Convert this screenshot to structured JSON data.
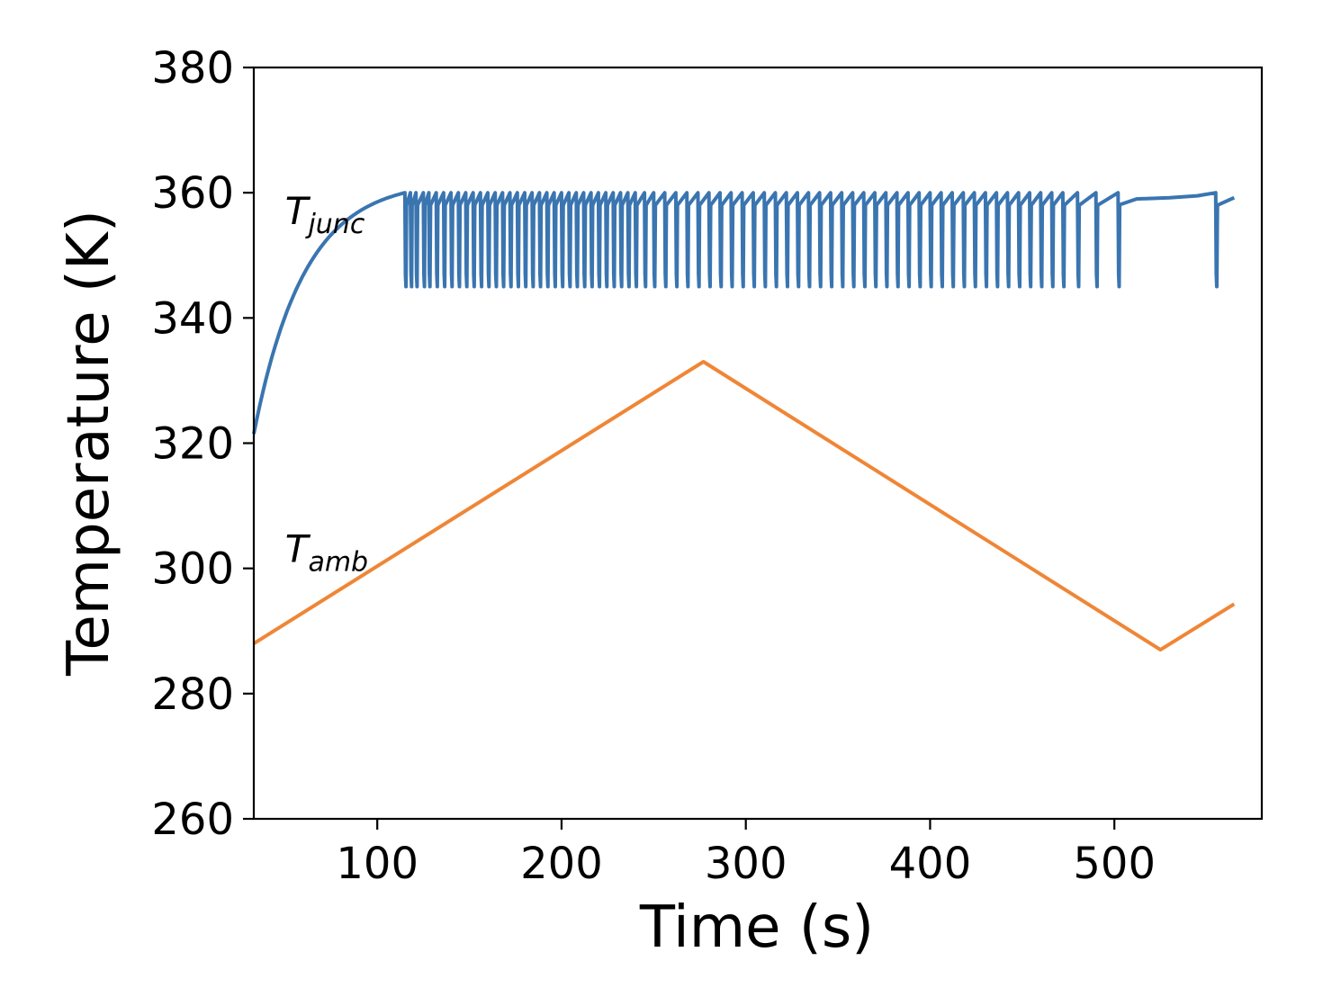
{
  "chart_data": {
    "type": "line",
    "xlabel": "Time (s)",
    "ylabel": "Temperature (K)",
    "xlim": [
      33,
      580
    ],
    "ylim": [
      260,
      380
    ],
    "xticks": [
      100,
      200,
      300,
      400,
      500
    ],
    "yticks": [
      260,
      280,
      300,
      320,
      340,
      360,
      380
    ],
    "grid": false,
    "series": [
      {
        "name": "T",
        "sub": "junc",
        "color": "#3a75b0",
        "label_at": [
          50,
          355
        ],
        "warmup": {
          "x_start": 33,
          "x_end": 115,
          "y_start": 321.5,
          "y_end": 360
        },
        "cycle_upper": 360,
        "cycle_lower": 345,
        "cycle_restart": 358,
        "cycle_max_times": [
          115,
          118,
          121,
          125,
          128,
          132,
          136,
          140,
          144,
          148,
          152,
          156,
          160,
          164,
          168,
          172,
          176,
          180,
          184,
          188,
          192,
          196,
          200,
          204,
          208,
          212,
          216,
          220,
          224,
          228,
          232,
          236,
          240,
          245,
          250,
          256,
          262,
          268,
          274,
          280,
          286,
          292,
          298,
          304,
          310,
          316,
          322,
          328,
          334,
          340,
          346,
          352,
          358,
          364,
          370,
          376,
          382,
          388,
          394,
          400,
          406,
          412,
          418,
          424,
          430,
          436,
          442,
          448,
          454,
          460,
          466,
          472,
          480,
          490,
          502
        ],
        "tail": {
          "x": [
            502,
            512,
            530,
            545,
            555,
            565
          ],
          "y": [
            358,
            359,
            359.2,
            359.5,
            360,
            359.2
          ]
        },
        "tail_drop_x": 555
      },
      {
        "name": "T",
        "sub": "amb",
        "color": "#ef8636",
        "label_at": [
          50,
          301
        ],
        "x": [
          33,
          277,
          525,
          565
        ],
        "y": [
          288,
          333,
          287,
          294.3
        ]
      }
    ]
  }
}
